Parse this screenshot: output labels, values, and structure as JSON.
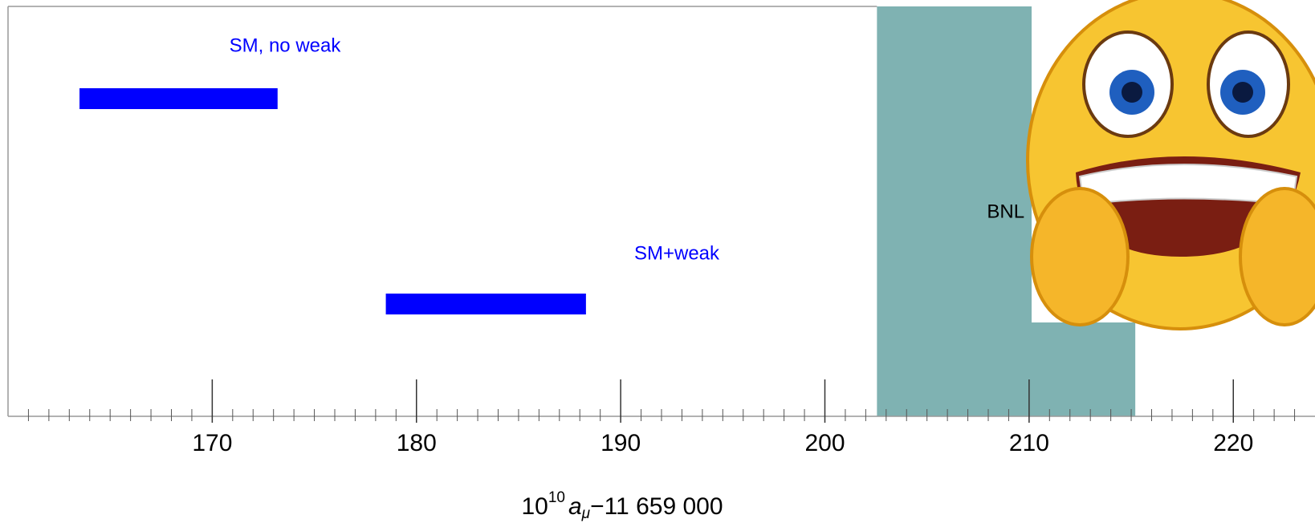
{
  "chart_data": {
    "type": "range_bar",
    "series": [
      {
        "name": "SM, no weak",
        "color": "#0000ff",
        "values": [
          163.5,
          173.2
        ]
      },
      {
        "name": "SM+weak",
        "color": "#0000ff",
        "values": [
          178.5,
          188.3
        ]
      }
    ],
    "band": {
      "name": "BNL",
      "color": "#7fb2b2",
      "values": [
        202.55,
        215.2
      ]
    },
    "xlim": [
      160,
      224
    ],
    "xticks": [
      170,
      180,
      190,
      200,
      210,
      220
    ],
    "xminorticks": [
      161,
      162,
      163,
      164,
      165,
      166,
      167,
      168,
      169,
      171,
      172,
      173,
      174,
      175,
      176,
      177,
      178,
      179,
      181,
      182,
      183,
      184,
      185,
      186,
      187,
      188,
      189,
      191,
      192,
      193,
      194,
      195,
      196,
      197,
      198,
      199,
      201,
      202,
      203,
      204,
      205,
      206,
      207,
      208,
      209,
      211,
      212,
      213,
      214,
      215,
      216,
      217,
      218,
      219,
      221,
      222,
      223
    ],
    "xlabel": {
      "base": "10",
      "exponent": "10",
      "symbol": "a",
      "subscript": "μ",
      "rest": "−11 659 000"
    }
  }
}
